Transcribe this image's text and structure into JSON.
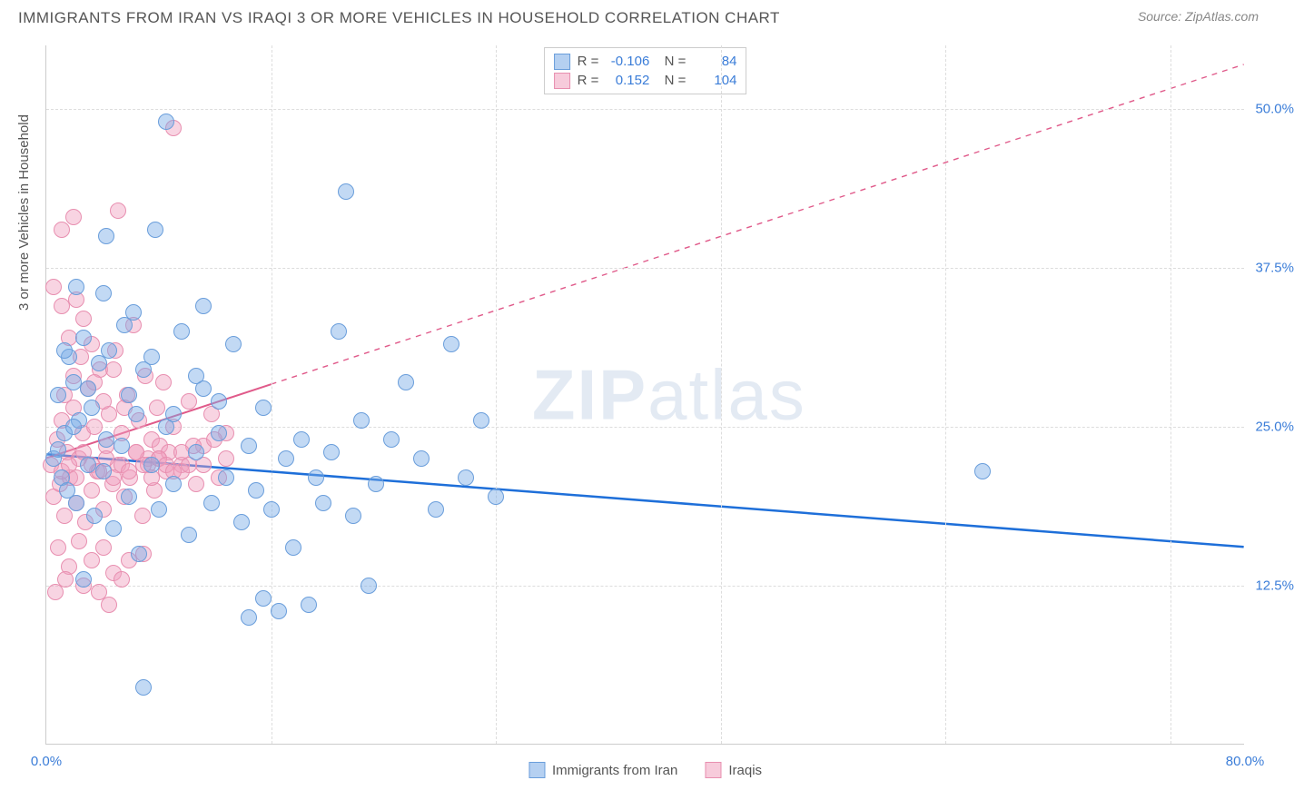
{
  "title": "IMMIGRANTS FROM IRAN VS IRAQI 3 OR MORE VEHICLES IN HOUSEHOLD CORRELATION CHART",
  "source": "Source: ZipAtlas.com",
  "ylabel": "3 or more Vehicles in Household",
  "watermark": "ZIPatlas",
  "chart": {
    "type": "scatter",
    "xlim": [
      0,
      80
    ],
    "ylim": [
      0,
      55
    ],
    "xtick_labels": [
      {
        "v": 0,
        "label": "0.0%"
      },
      {
        "v": 80,
        "label": "80.0%"
      }
    ],
    "xtick_gridlines": [
      15,
      30,
      45,
      60,
      75
    ],
    "ytick_labels": [
      {
        "v": 12.5,
        "label": "12.5%"
      },
      {
        "v": 25,
        "label": "25.0%"
      },
      {
        "v": 37.5,
        "label": "37.5%"
      },
      {
        "v": 50,
        "label": "50.0%"
      }
    ],
    "grid_color": "#ddd",
    "background_color": "#ffffff",
    "point_radius": 9,
    "series": [
      {
        "name": "Immigrants from Iran",
        "color": "#6a9edb",
        "fill": "rgba(120,170,230,0.45)",
        "class": "pt-blue",
        "R": "-0.106",
        "N": "84",
        "trend": {
          "x1": 0,
          "y1": 22.8,
          "x2": 80,
          "y2": 15.5,
          "solid_until_x": 80,
          "stroke": "#1e6fd9",
          "width": 2.5
        },
        "points": [
          [
            0.5,
            22.5
          ],
          [
            0.8,
            23.2
          ],
          [
            1.0,
            21.0
          ],
          [
            1.2,
            24.5
          ],
          [
            1.4,
            20.0
          ],
          [
            1.8,
            28.5
          ],
          [
            2.0,
            19.0
          ],
          [
            2.2,
            25.5
          ],
          [
            2.5,
            13.0
          ],
          [
            2.8,
            22.0
          ],
          [
            3.0,
            26.5
          ],
          [
            3.2,
            18.0
          ],
          [
            3.5,
            30.0
          ],
          [
            3.8,
            21.5
          ],
          [
            4.0,
            24.0
          ],
          [
            4.5,
            17.0
          ],
          [
            5.0,
            23.5
          ],
          [
            5.2,
            33.0
          ],
          [
            5.5,
            19.5
          ],
          [
            6.0,
            26.0
          ],
          [
            6.2,
            15.0
          ],
          [
            6.5,
            29.5
          ],
          [
            7.0,
            22.0
          ],
          [
            7.3,
            40.5
          ],
          [
            7.5,
            18.5
          ],
          [
            8.0,
            25.0
          ],
          [
            8.5,
            20.5
          ],
          [
            9.0,
            32.5
          ],
          [
            9.5,
            16.5
          ],
          [
            10.0,
            23.0
          ],
          [
            10.5,
            28.0
          ],
          [
            11.0,
            19.0
          ],
          [
            11.5,
            24.5
          ],
          [
            12.0,
            21.0
          ],
          [
            12.5,
            31.5
          ],
          [
            13.0,
            17.5
          ],
          [
            13.5,
            23.5
          ],
          [
            14.0,
            20.0
          ],
          [
            14.5,
            26.5
          ],
          [
            15.0,
            18.5
          ],
          [
            15.5,
            10.5
          ],
          [
            16.0,
            22.5
          ],
          [
            16.5,
            15.5
          ],
          [
            17.0,
            24.0
          ],
          [
            17.5,
            11.0
          ],
          [
            18.0,
            21.0
          ],
          [
            18.5,
            19.0
          ],
          [
            19.0,
            23.0
          ],
          [
            19.5,
            32.5
          ],
          [
            20.0,
            43.5
          ],
          [
            20.5,
            18.0
          ],
          [
            21.0,
            25.5
          ],
          [
            21.5,
            12.5
          ],
          [
            22.0,
            20.5
          ],
          [
            23.0,
            24.0
          ],
          [
            24.0,
            28.5
          ],
          [
            25.0,
            22.5
          ],
          [
            26.0,
            18.5
          ],
          [
            27.0,
            31.5
          ],
          [
            28.0,
            21.0
          ],
          [
            29.0,
            25.5
          ],
          [
            30.0,
            19.5
          ],
          [
            62.5,
            21.5
          ],
          [
            8.0,
            49.0
          ],
          [
            10.5,
            34.5
          ],
          [
            13.5,
            10.0
          ],
          [
            14.5,
            11.5
          ],
          [
            6.5,
            4.5
          ],
          [
            4.0,
            40.0
          ],
          [
            5.8,
            34.0
          ],
          [
            2.5,
            32.0
          ],
          [
            3.8,
            35.5
          ],
          [
            1.5,
            30.5
          ],
          [
            2.0,
            36.0
          ],
          [
            1.2,
            31.0
          ],
          [
            0.8,
            27.5
          ],
          [
            1.8,
            25.0
          ],
          [
            2.8,
            28.0
          ],
          [
            4.2,
            31.0
          ],
          [
            5.5,
            27.5
          ],
          [
            7.0,
            30.5
          ],
          [
            8.5,
            26.0
          ],
          [
            10.0,
            29.0
          ],
          [
            11.5,
            27.0
          ]
        ]
      },
      {
        "name": "Iraqis",
        "color": "#e88fb0",
        "fill": "rgba(240,160,190,0.45)",
        "class": "pt-pink",
        "R": "0.152",
        "N": "104",
        "trend": {
          "x1": 0,
          "y1": 22.5,
          "x2": 80,
          "y2": 53.5,
          "solid_until_x": 15,
          "stroke": "#e05a8a",
          "width": 2
        },
        "points": [
          [
            0.3,
            22.0
          ],
          [
            0.5,
            19.5
          ],
          [
            0.7,
            24.0
          ],
          [
            0.9,
            20.5
          ],
          [
            1.0,
            25.5
          ],
          [
            1.2,
            18.0
          ],
          [
            1.4,
            23.0
          ],
          [
            1.6,
            21.0
          ],
          [
            1.8,
            26.5
          ],
          [
            2.0,
            19.0
          ],
          [
            2.2,
            22.5
          ],
          [
            2.4,
            24.5
          ],
          [
            2.6,
            17.5
          ],
          [
            2.8,
            28.0
          ],
          [
            3.0,
            20.0
          ],
          [
            3.2,
            25.0
          ],
          [
            3.4,
            21.5
          ],
          [
            3.6,
            29.5
          ],
          [
            3.8,
            18.5
          ],
          [
            4.0,
            23.5
          ],
          [
            4.2,
            26.0
          ],
          [
            4.4,
            20.5
          ],
          [
            4.6,
            31.0
          ],
          [
            4.8,
            22.0
          ],
          [
            5.0,
            24.5
          ],
          [
            5.2,
            19.5
          ],
          [
            5.4,
            27.5
          ],
          [
            5.6,
            21.0
          ],
          [
            5.8,
            33.0
          ],
          [
            6.0,
            23.0
          ],
          [
            6.2,
            25.5
          ],
          [
            6.4,
            18.0
          ],
          [
            6.6,
            29.0
          ],
          [
            6.8,
            22.5
          ],
          [
            7.0,
            24.0
          ],
          [
            7.2,
            20.0
          ],
          [
            7.4,
            26.5
          ],
          [
            7.6,
            23.5
          ],
          [
            7.8,
            28.5
          ],
          [
            8.0,
            21.5
          ],
          [
            8.5,
            25.0
          ],
          [
            9.0,
            22.0
          ],
          [
            9.5,
            27.0
          ],
          [
            10.0,
            20.5
          ],
          [
            10.5,
            23.5
          ],
          [
            11.0,
            26.0
          ],
          [
            11.5,
            21.0
          ],
          [
            12.0,
            24.5
          ],
          [
            0.5,
            36.0
          ],
          [
            1.0,
            34.5
          ],
          [
            1.5,
            32.0
          ],
          [
            2.0,
            35.0
          ],
          [
            2.5,
            33.5
          ],
          [
            3.0,
            31.5
          ],
          [
            1.2,
            27.5
          ],
          [
            1.8,
            29.0
          ],
          [
            2.3,
            30.5
          ],
          [
            3.2,
            28.5
          ],
          [
            3.8,
            27.0
          ],
          [
            4.5,
            29.5
          ],
          [
            5.2,
            26.5
          ],
          [
            0.8,
            15.5
          ],
          [
            1.5,
            14.0
          ],
          [
            2.2,
            16.0
          ],
          [
            3.0,
            14.5
          ],
          [
            3.8,
            15.5
          ],
          [
            4.5,
            13.5
          ],
          [
            5.5,
            14.5
          ],
          [
            6.5,
            15.0
          ],
          [
            0.6,
            12.0
          ],
          [
            1.3,
            13.0
          ],
          [
            2.5,
            12.5
          ],
          [
            3.5,
            12.0
          ],
          [
            4.2,
            11.0
          ],
          [
            5.0,
            13.0
          ],
          [
            1.0,
            40.5
          ],
          [
            1.8,
            41.5
          ],
          [
            8.5,
            48.5
          ],
          [
            4.8,
            42.0
          ],
          [
            6.8,
            22.0
          ],
          [
            7.5,
            22.5
          ],
          [
            8.2,
            23.0
          ],
          [
            9.0,
            21.5
          ],
          [
            9.8,
            23.5
          ],
          [
            10.5,
            22.0
          ],
          [
            11.2,
            24.0
          ],
          [
            12.0,
            22.5
          ],
          [
            1.0,
            21.5
          ],
          [
            1.5,
            22.0
          ],
          [
            2.0,
            21.0
          ],
          [
            2.5,
            23.0
          ],
          [
            3.0,
            22.0
          ],
          [
            3.5,
            21.5
          ],
          [
            4.0,
            22.5
          ],
          [
            4.5,
            21.0
          ],
          [
            5.0,
            22.0
          ],
          [
            5.5,
            21.5
          ],
          [
            6.0,
            23.0
          ],
          [
            6.5,
            22.0
          ],
          [
            7.0,
            21.0
          ],
          [
            7.5,
            22.5
          ],
          [
            8.0,
            22.0
          ],
          [
            8.5,
            21.5
          ],
          [
            9.0,
            23.0
          ],
          [
            9.5,
            22.0
          ]
        ]
      }
    ]
  },
  "legend_bottom": [
    {
      "label": "Immigrants from Iran",
      "swatch": "sw-blue"
    },
    {
      "label": "Iraqis",
      "swatch": "sw-pink"
    }
  ]
}
